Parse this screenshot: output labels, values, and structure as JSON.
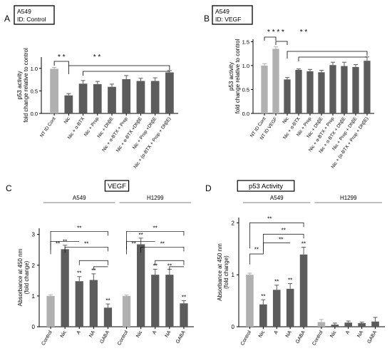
{
  "chart_data": [
    {
      "panel": "A",
      "type": "bar",
      "boxlabel": [
        "A549",
        "ID: Control"
      ],
      "ylabel": [
        "p53 activity",
        "fold change relative to control"
      ],
      "ylim": [
        0,
        1.25
      ],
      "yticks": [
        "0.0",
        "0.5",
        "1.0"
      ],
      "categories": [
        "NT ID Cont",
        "Nic",
        "Nic + α-BTX",
        "Nic + Prop",
        "Nic + DhβE",
        "Nic + α-BTX + Prop",
        "Nic + α-BTX +DhβE",
        "Nic + Prop +DhβE",
        "Nic + (α-BTX + Prop + DhβE)"
      ],
      "values": [
        0.99,
        0.4,
        0.66,
        0.65,
        0.59,
        0.76,
        0.72,
        0.72,
        0.91
      ],
      "errors": [
        0.03,
        0.04,
        0.07,
        0.06,
        0.06,
        0.08,
        0.06,
        0.07,
        0.04
      ],
      "colors": [
        "#b0b0b0",
        "#5c5c5c",
        "#5c5c5c",
        "#5c5c5c",
        "#5c5c5c",
        "#5c5c5c",
        "#5c5c5c",
        "#5c5c5c",
        "#5c5c5c"
      ],
      "stars": [
        "* *",
        "* *"
      ]
    },
    {
      "panel": "B",
      "type": "bar",
      "boxlabel": [
        "A549",
        "ID: VEGF"
      ],
      "ylabel": [
        "p53 activity",
        "fold change relative to control"
      ],
      "ylim": [
        0,
        1.55
      ],
      "yticks": [
        "0.0",
        "0.5",
        "1.0",
        "1.5"
      ],
      "categories": [
        "NT ID Cont",
        "NT ID VEGF",
        "Nic",
        "Nic + α-BTX",
        "Nic + Prop",
        "Nic + DhβE",
        "Nic + α-BTX + Prop",
        "Nic + α-BTX + DhβE",
        "Nic + Prop + DhβE",
        "Nic + (α-BTX + Prop + DhβE)"
      ],
      "values": [
        1.0,
        1.35,
        0.71,
        0.91,
        0.88,
        0.86,
        1.01,
        0.99,
        0.97,
        1.1
      ],
      "errors": [
        0.04,
        0.04,
        0.04,
        0.02,
        0.04,
        0.04,
        0.06,
        0.08,
        0.05,
        0.08
      ],
      "colors": [
        "#b0b0b0",
        "#b0b0b0",
        "#5c5c5c",
        "#5c5c5c",
        "#5c5c5c",
        "#5c5c5c",
        "#5c5c5c",
        "#5c5c5c",
        "#5c5c5c",
        "#5c5c5c"
      ],
      "stars": [
        "* * * *",
        "* *"
      ]
    },
    {
      "panel": "C",
      "type": "bar",
      "title": "VEGF",
      "ylabel": [
        "Absorbance at 450 nm",
        "(fold change)"
      ],
      "ylim": [
        0,
        3.2
      ],
      "yticks": [
        "0",
        "1",
        "2",
        "3"
      ],
      "groups": [
        "A549",
        "H1299"
      ],
      "categories": [
        "Control",
        "Nic",
        "A",
        "NA",
        "GABA"
      ],
      "series": [
        {
          "group": "A549",
          "values": [
            1.0,
            2.52,
            1.48,
            1.52,
            0.62
          ],
          "errors": [
            0.04,
            0.13,
            0.15,
            0.2,
            0.12
          ]
        },
        {
          "group": "H1299",
          "values": [
            1.0,
            2.68,
            1.69,
            1.69,
            0.76
          ],
          "errors": [
            0.03,
            0.2,
            0.18,
            0.18,
            0.09
          ]
        }
      ],
      "colors": [
        "#b0b0b0",
        "#5c5c5c",
        "#5c5c5c",
        "#5c5c5c",
        "#5c5c5c"
      ],
      "stars": "**"
    },
    {
      "panel": "D",
      "type": "bar",
      "title": "p53 Activity",
      "ylabel": [
        "Absorbance at 450 nm",
        "(fold change)"
      ],
      "ylim": [
        0,
        2.1
      ],
      "yticks": [
        "0",
        "1",
        "2"
      ],
      "groups": [
        "A549",
        "H1299"
      ],
      "categories": [
        "Control",
        "Nic",
        "A",
        "NA",
        "GABA"
      ],
      "series": [
        {
          "group": "A549",
          "values": [
            1.0,
            0.43,
            0.71,
            0.73,
            1.39
          ],
          "errors": [
            0.03,
            0.09,
            0.09,
            0.1,
            0.14
          ]
        },
        {
          "group": "H1299",
          "values": [
            0.09,
            0.04,
            0.08,
            0.07,
            0.1
          ],
          "errors": [
            0.05,
            0.03,
            0.03,
            0.02,
            0.08
          ]
        }
      ],
      "colors": [
        "#b0b0b0",
        "#5c5c5c",
        "#5c5c5c",
        "#5c5c5c",
        "#5c5c5c"
      ],
      "stars": "**"
    }
  ]
}
